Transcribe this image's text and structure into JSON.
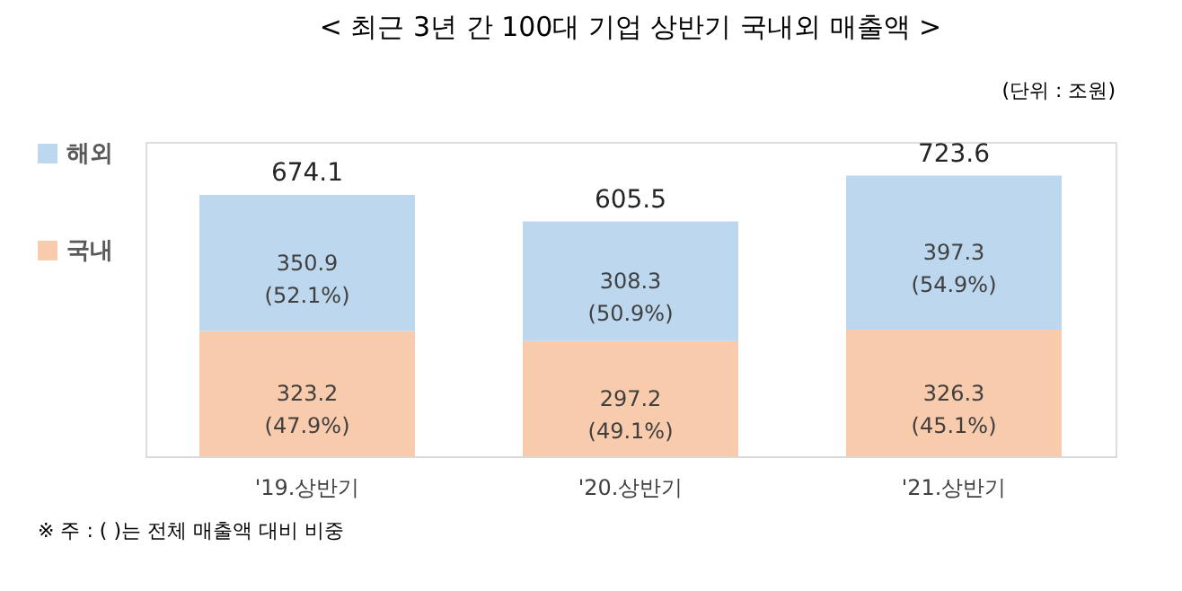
{
  "chart_data": {
    "type": "bar",
    "title": "< 최근 3년 간 100대 기업 상반기 국내외 매출액 >",
    "subtitle": "(단위 : 조원)",
    "categories": [
      "'19.상반기",
      "'20.상반기",
      "'21.상반기"
    ],
    "stacked": true,
    "data_labels": false,
    "legend": "left",
    "series": [
      {
        "name": "국내",
        "color": "#f8cbad",
        "values": [
          323.2,
          297.2,
          326.3
        ],
        "value_labels": [
          "323.2\n(47.9%)",
          "297.2\n(49.1%)",
          "326.3\n(45.1%)"
        ]
      },
      {
        "name": "해외",
        "color": "#bdd7ee",
        "values": [
          350.9,
          308.3,
          397.3
        ],
        "value_labels": [
          "350.9\n(52.1%)",
          "308.3\n(50.9%)",
          "397.3\n(54.9%)"
        ]
      }
    ],
    "totals": [
      "674.1",
      "605.5",
      "723.6"
    ],
    "annotations": [
      "※ 주 : ( )는 전체 매출액 대비 비중"
    ]
  }
}
